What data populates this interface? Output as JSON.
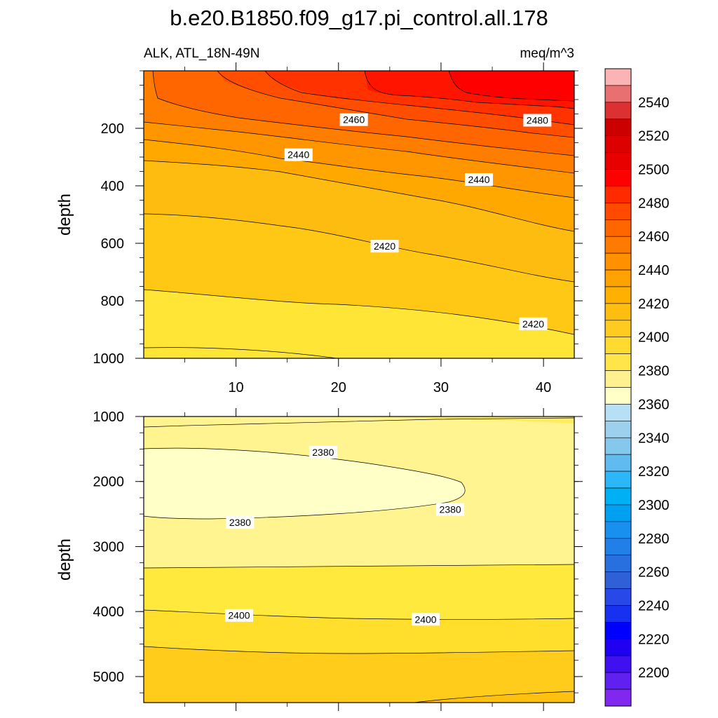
{
  "title": "b.e20.B1850.f09_g17.pi_control.all.178",
  "subtitle_left": "ALK, ATL_18N-49N",
  "subtitle_right": "meq/m^3",
  "chart_data": [
    {
      "type": "contour",
      "panel": "upper",
      "ylabel": "depth",
      "xlabel": "",
      "xlim": [
        1,
        43
      ],
      "ylim": [
        1000,
        0
      ],
      "xticks": [
        10,
        20,
        30,
        40
      ],
      "xtick_labels": [
        "10",
        "20",
        "30",
        "40"
      ],
      "yticks": [
        200,
        400,
        600,
        800,
        1000
      ],
      "ytick_labels": [
        "200",
        "400",
        "600",
        "800",
        "1000"
      ],
      "contour_levels": [
        2540,
        2530,
        2520,
        2510,
        2500,
        2490,
        2480,
        2470,
        2460,
        2450,
        2440,
        2430,
        2420,
        2410,
        2400,
        2390
      ],
      "contour_labels": [
        {
          "text": "2460",
          "x": 21.5,
          "y": 170
        },
        {
          "text": "2480",
          "x": 39.4,
          "y": 172
        },
        {
          "text": "2440",
          "x": 16.1,
          "y": 292
        },
        {
          "text": "2440",
          "x": 33.7,
          "y": 378
        },
        {
          "text": "2420",
          "x": 24.5,
          "y": 610
        },
        {
          "text": "2420",
          "x": 39.0,
          "y": 880
        }
      ]
    },
    {
      "type": "contour",
      "panel": "lower",
      "ylabel": "depth",
      "xlabel": "",
      "xlim": [
        1,
        43
      ],
      "ylim": [
        5400,
        1000
      ],
      "yticks": [
        1000,
        2000,
        3000,
        4000,
        5000
      ],
      "ytick_labels": [
        "1000",
        "2000",
        "3000",
        "4000",
        "5000"
      ],
      "contour_levels": [
        2390,
        2380,
        2390,
        2400,
        2410
      ],
      "contour_labels": [
        {
          "text": "2380",
          "x": 18.5,
          "y": 1550
        },
        {
          "text": "2380",
          "x": 30.9,
          "y": 2430
        },
        {
          "text": "2380",
          "x": 10.4,
          "y": 2630
        },
        {
          "text": "2400",
          "x": 10.3,
          "y": 4060
        },
        {
          "text": "2400",
          "x": 28.5,
          "y": 4120
        }
      ]
    }
  ],
  "colorbar": {
    "tick_labels": [
      "2540",
      "2520",
      "2500",
      "2480",
      "2460",
      "2440",
      "2420",
      "2400",
      "2380",
      "2360",
      "2340",
      "2320",
      "2300",
      "2280",
      "2260",
      "2240",
      "2220",
      "2200"
    ],
    "colors": [
      "#fbb4b4",
      "#e87070",
      "#dd3030",
      "#cc0000",
      "#dd0000",
      "#e80000",
      "#ff0000",
      "#ff2a00",
      "#ff4a00",
      "#ff6600",
      "#ff7a00",
      "#ff9000",
      "#ffa200",
      "#ffb000",
      "#ffbe10",
      "#ffcb20",
      "#ffda30",
      "#ffe44a",
      "#fff090",
      "#ffffc8",
      "#b8e0f4",
      "#9cd0ec",
      "#84c8ec",
      "#60bcf0",
      "#2cb8f8",
      "#00b0f4",
      "#00a0f0",
      "#1890f0",
      "#2080e8",
      "#2870e0",
      "#3060d8",
      "#2848e8",
      "#1830f0",
      "#0000ff",
      "#2000f0",
      "#4010f0",
      "#6020f0",
      "#8028f0"
    ]
  }
}
